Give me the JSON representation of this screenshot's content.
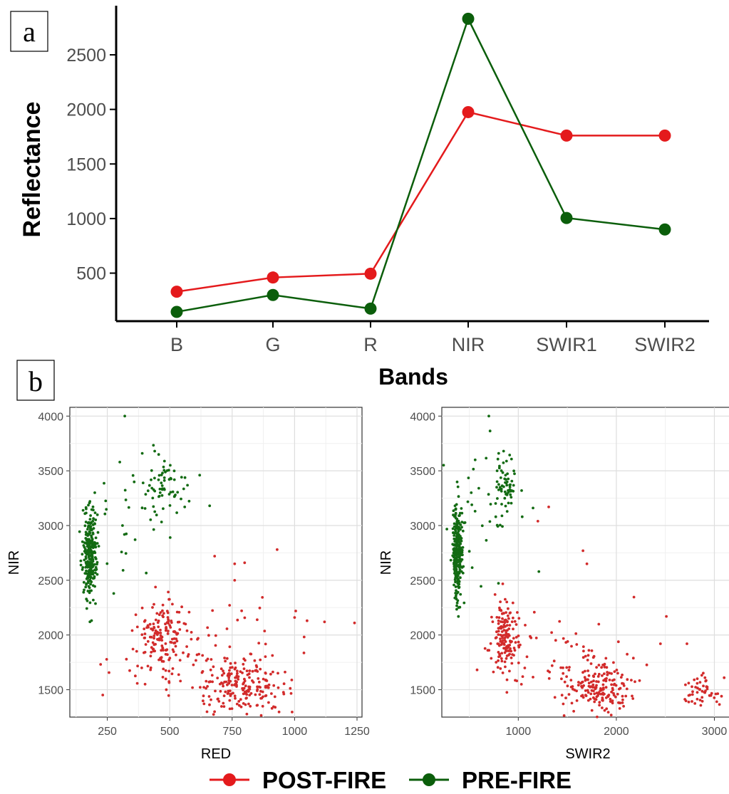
{
  "panel_labels": {
    "a": "a",
    "b": "b"
  },
  "colors": {
    "post_fire": "#e41a1c",
    "pre_fire": "#0b5e0b",
    "scatter_post": "#d22b2b",
    "scatter_pre": "#136b13"
  },
  "legend": {
    "post_fire": "POST-FIRE",
    "pre_fire": "PRE-FIRE"
  },
  "chart_data": [
    {
      "id": "panel-a",
      "type": "line",
      "xlabel": "Bands",
      "ylabel": "Reflectance",
      "categories": [
        "B",
        "G",
        "R",
        "NIR",
        "SWIR1",
        "SWIR2"
      ],
      "yticks": [
        500,
        1000,
        1500,
        2000,
        2500
      ],
      "ylim": [
        60,
        2950
      ],
      "grid": false,
      "series": [
        {
          "name": "POST-FIRE",
          "color": "#e41a1c",
          "values": [
            330,
            460,
            495,
            1975,
            1760,
            1760
          ]
        },
        {
          "name": "PRE-FIRE",
          "color": "#0b5e0b",
          "values": [
            145,
            300,
            175,
            2830,
            1005,
            900
          ]
        }
      ]
    },
    {
      "id": "panel-b-left",
      "type": "scatter",
      "xlabel": "RED",
      "ylabel": "NIR",
      "xlim": [
        100,
        1270
      ],
      "ylim": [
        1250,
        4080
      ],
      "xticks": [
        250,
        500,
        750,
        1000,
        1250
      ],
      "yticks": [
        1500,
        2000,
        2500,
        3000,
        3500,
        4000
      ],
      "grid": true,
      "series": [
        {
          "name": "POST-FIRE",
          "color": "#d22b2b",
          "n": 420,
          "clusters": [
            {
              "cx": 470,
              "cy": 2000,
              "sx": 50,
              "sy": 160,
              "w": 0.35
            },
            {
              "cx": 790,
              "cy": 1520,
              "sx": 90,
              "sy": 120,
              "w": 0.45
            },
            {
              "cx": 650,
              "cy": 1800,
              "sx": 180,
              "sy": 260,
              "w": 0.2
            }
          ],
          "extra": [
            [
              1240,
              2110
            ],
            [
              1120,
              2120
            ],
            [
              1050,
              2130
            ],
            [
              930,
              2780
            ],
            [
              800,
              2660
            ],
            [
              760,
              2650
            ],
            [
              680,
              2720
            ],
            [
              760,
              2500
            ],
            [
              1000,
              2160
            ]
          ]
        },
        {
          "name": "PRE-FIRE",
          "color": "#136b13",
          "n": 360,
          "clusters": [
            {
              "cx": 180,
              "cy": 2750,
              "sx": 14,
              "sy": 210,
              "w": 0.75
            },
            {
              "cx": 490,
              "cy": 3360,
              "sx": 45,
              "sy": 140,
              "w": 0.17
            },
            {
              "cx": 340,
              "cy": 3050,
              "sx": 90,
              "sy": 350,
              "w": 0.08
            }
          ],
          "extra": [
            [
              320,
              4000
            ],
            [
              390,
              3660
            ],
            [
              440,
              3680
            ],
            [
              620,
              3460
            ],
            [
              660,
              3180
            ],
            [
              560,
              3170
            ],
            [
              300,
              3580
            ],
            [
              200,
              3300
            ]
          ]
        }
      ]
    },
    {
      "id": "panel-b-right",
      "type": "scatter",
      "xlabel": "SWIR2",
      "ylabel": "NIR",
      "xlim": [
        220,
        3200
      ],
      "ylim": [
        1250,
        4080
      ],
      "xticks": [
        1000,
        2000,
        3000
      ],
      "yticks": [
        1500,
        2000,
        2500,
        3000,
        3500,
        4000
      ],
      "grid": true,
      "series": [
        {
          "name": "POST-FIRE",
          "color": "#d22b2b",
          "n": 420,
          "clusters": [
            {
              "cx": 860,
              "cy": 1980,
              "sx": 70,
              "sy": 170,
              "w": 0.33
            },
            {
              "cx": 1850,
              "cy": 1520,
              "sx": 180,
              "sy": 120,
              "w": 0.37
            },
            {
              "cx": 1500,
              "cy": 1700,
              "sx": 380,
              "sy": 220,
              "w": 0.18
            },
            {
              "cx": 2880,
              "cy": 1470,
              "sx": 90,
              "sy": 90,
              "w": 0.12
            }
          ],
          "extra": [
            [
              1310,
              3170
            ],
            [
              1200,
              3040
            ],
            [
              1660,
              2770
            ],
            [
              1700,
              2650
            ],
            [
              2510,
              2170
            ],
            [
              2720,
              1920
            ],
            [
              3100,
              1610
            ],
            [
              2450,
              1920
            ]
          ]
        },
        {
          "name": "PRE-FIRE",
          "color": "#136b13",
          "n": 360,
          "clusters": [
            {
              "cx": 380,
              "cy": 2760,
              "sx": 22,
              "sy": 210,
              "w": 0.75
            },
            {
              "cx": 860,
              "cy": 3350,
              "sx": 60,
              "sy": 140,
              "w": 0.17
            },
            {
              "cx": 620,
              "cy": 3050,
              "sx": 150,
              "sy": 350,
              "w": 0.08
            }
          ],
          "extra": [
            [
              700,
              4000
            ],
            [
              800,
              3660
            ],
            [
              850,
              3680
            ],
            [
              1150,
              3160
            ],
            [
              1040,
              3080
            ],
            [
              1210,
              2580
            ],
            [
              560,
              3600
            ],
            [
              520,
              3300
            ]
          ]
        }
      ]
    }
  ]
}
